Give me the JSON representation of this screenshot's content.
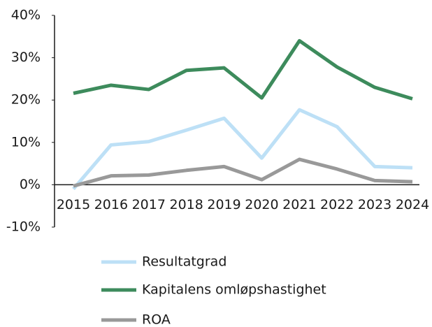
{
  "chart_data": {
    "type": "line",
    "categories": [
      "2015",
      "2016",
      "2017",
      "2018",
      "2019",
      "2020",
      "2021",
      "2022",
      "2023",
      "2024"
    ],
    "series": [
      {
        "name": "Resultatgrad",
        "color": "#bde0f6",
        "values": [
          -1,
          9.4,
          10.2,
          12.9,
          15.7,
          6.3,
          17.7,
          13.7,
          4.3,
          4.0
        ]
      },
      {
        "name": "Kapitalens omløpshastighet",
        "color": "#3d8b5c",
        "values": [
          21.6,
          23.5,
          22.5,
          27,
          27.6,
          20.5,
          34,
          27.8,
          23,
          20.3
        ]
      },
      {
        "name": "ROA",
        "color": "#999999",
        "values": [
          -0.3,
          2.1,
          2.3,
          3.4,
          4.3,
          1.2,
          6,
          3.7,
          1,
          0.7
        ]
      }
    ],
    "ylim": [
      -10,
      40
    ],
    "yticks": [
      {
        "value": -10,
        "label": "-10%"
      },
      {
        "value": 0,
        "label": "0%"
      },
      {
        "value": 10,
        "label": "10%"
      },
      {
        "value": 20,
        "label": "20%"
      },
      {
        "value": 30,
        "label": "30%"
      },
      {
        "value": 40,
        "label": "40%"
      }
    ],
    "grid": false,
    "legend": "bottom"
  }
}
